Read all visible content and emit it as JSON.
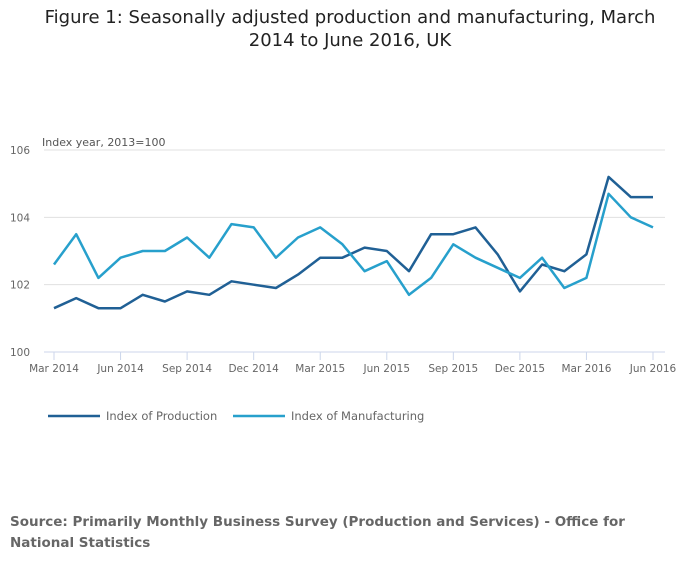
{
  "chart_data": {
    "type": "line",
    "title": "Figure 1: Seasonally adjusted production and manufacturing, March 2014 to June 2016, UK",
    "ylabel": "Index year, 2013=100",
    "xlabel": "",
    "ylim": [
      100,
      106
    ],
    "yticks": [
      "100",
      "102",
      "104",
      "106"
    ],
    "ytick_values": [
      100,
      102,
      104,
      106
    ],
    "xtick_labels": [
      "Mar 2014",
      "Jun 2014",
      "Sep 2014",
      "Dec 2014",
      "Mar 2015",
      "Jun 2015",
      "Sep 2015",
      "Dec 2015",
      "Mar 2016",
      "Jun 2016"
    ],
    "x": [
      "Mar 2014",
      "Apr 2014",
      "May 2014",
      "Jun 2014",
      "Jul 2014",
      "Aug 2014",
      "Sep 2014",
      "Oct 2014",
      "Nov 2014",
      "Dec 2014",
      "Jan 2015",
      "Feb 2015",
      "Mar 2015",
      "Apr 2015",
      "May 2015",
      "Jun 2015",
      "Jul 2015",
      "Aug 2015",
      "Sep 2015",
      "Oct 2015",
      "Nov 2015",
      "Dec 2015",
      "Jan 2016",
      "Feb 2016",
      "Mar 2016",
      "Apr 2016",
      "May 2016",
      "Jun 2016"
    ],
    "grid": true,
    "legend_position": "bottom-left",
    "series": [
      {
        "name": "Index of Production",
        "color": "#206095",
        "values": [
          101.3,
          101.6,
          101.3,
          101.3,
          101.7,
          101.5,
          101.8,
          101.7,
          102.1,
          102.0,
          101.9,
          102.3,
          102.8,
          102.8,
          103.1,
          103.0,
          102.4,
          103.5,
          103.5,
          103.7,
          102.9,
          101.8,
          102.6,
          102.4,
          102.9,
          105.2,
          104.6,
          104.6
        ]
      },
      {
        "name": "Index of Manufacturing",
        "color": "#27a0cc",
        "values": [
          102.6,
          103.5,
          102.2,
          102.8,
          103.0,
          103.0,
          103.4,
          102.8,
          103.8,
          103.7,
          102.8,
          103.4,
          103.7,
          103.2,
          102.4,
          102.7,
          101.7,
          102.2,
          103.2,
          102.8,
          102.5,
          102.2,
          102.8,
          101.9,
          102.2,
          104.7,
          104.0,
          103.7
        ]
      }
    ]
  },
  "source": "Source: Primarily Monthly Business Survey (Production and Services) - Office for National Statistics"
}
